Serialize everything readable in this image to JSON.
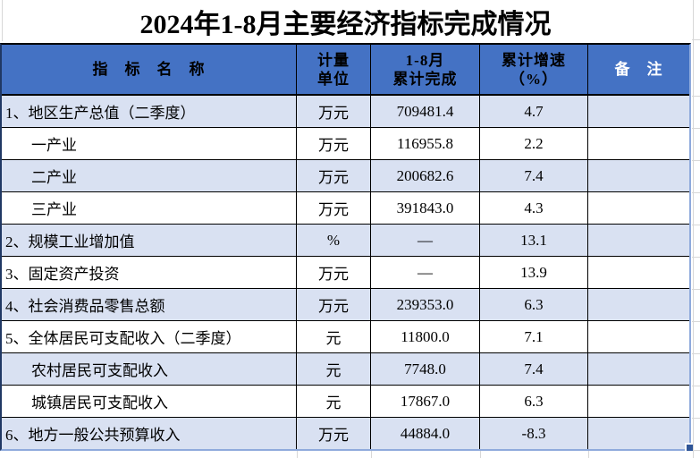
{
  "title": "2024年1-8月主要经济指标完成情况",
  "table": {
    "header": {
      "indicator": "指　标　名　称",
      "unit_line1": "计量",
      "unit_line2": "单位",
      "completed_line1": "1-8月",
      "completed_line2": "累计完成",
      "growth_line1": "累计增速",
      "growth_line2": "（%）",
      "remark": "备　注"
    },
    "rows": [
      {
        "indicator": "1、地区生产总值（二季度）",
        "indent": false,
        "unit": "万元",
        "completed": "709481.4",
        "growth": "4.7",
        "remark": ""
      },
      {
        "indicator": "一产业",
        "indent": true,
        "unit": "万元",
        "completed": "116955.8",
        "growth": "2.2",
        "remark": ""
      },
      {
        "indicator": "二产业",
        "indent": true,
        "unit": "万元",
        "completed": "200682.6",
        "growth": "7.4",
        "remark": ""
      },
      {
        "indicator": "三产业",
        "indent": true,
        "unit": "万元",
        "completed": "391843.0",
        "growth": "4.3",
        "remark": ""
      },
      {
        "indicator": "2、规模工业增加值",
        "indent": false,
        "unit": "%",
        "completed": "—",
        "growth": "13.1",
        "remark": ""
      },
      {
        "indicator": "3、固定资产投资",
        "indent": false,
        "unit": "万元",
        "completed": "—",
        "growth": "13.9",
        "remark": ""
      },
      {
        "indicator": "4、社会消费品零售总额",
        "indent": false,
        "unit": "万元",
        "completed": "239353.0",
        "growth": "6.3",
        "remark": ""
      },
      {
        "indicator": "5、全体居民可支配收入（二季度）",
        "indent": false,
        "unit": "元",
        "completed": "11800.0",
        "growth": "7.1",
        "remark": ""
      },
      {
        "indicator": "农村居民可支配收入",
        "indent": true,
        "unit": "元",
        "completed": "7748.0",
        "growth": "7.4",
        "remark": ""
      },
      {
        "indicator": "城镇居民可支配收入",
        "indent": true,
        "unit": "元",
        "completed": "17867.0",
        "growth": "6.3",
        "remark": ""
      },
      {
        "indicator": "6、地方一般公共预算收入",
        "indent": false,
        "unit": "万元",
        "completed": "44884.0",
        "growth": "-8.3",
        "remark": ""
      }
    ]
  },
  "colors": {
    "header_bg": "#4472C4",
    "shaded_row_bg": "#D9E1F2",
    "selection_border": "#8FAADC",
    "fill_handle": "#2F5597",
    "header_remark_text": "#FFFFFF",
    "grid_line": "#D8D8D8"
  }
}
